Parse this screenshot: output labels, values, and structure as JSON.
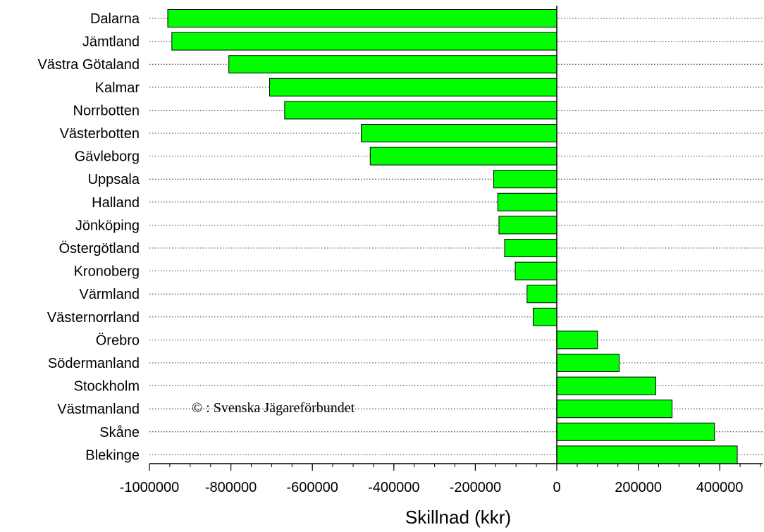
{
  "chart_data": {
    "type": "bar",
    "orientation": "horizontal",
    "categories": [
      "Dalarna",
      "Jämtland",
      "Västra Götaland",
      "Kalmar",
      "Norrbotten",
      "Västerbotten",
      "Gävleborg",
      "Uppsala",
      "Halland",
      "Jönköping",
      "Östergötland",
      "Kronoberg",
      "Värmland",
      "Västernorrland",
      "Örebro",
      "Södermanland",
      "Stockholm",
      "Västmanland",
      "Skåne",
      "Blekinge"
    ],
    "values": [
      -955000,
      -945000,
      -805000,
      -705000,
      -668000,
      -480000,
      -458000,
      -155000,
      -145000,
      -142000,
      -128000,
      -102000,
      -73000,
      -58000,
      100000,
      153000,
      243000,
      283000,
      387000,
      443000
    ],
    "xlabel": "Skillnad (kkr)",
    "xticks": [
      -1000000,
      -800000,
      -600000,
      -400000,
      -200000,
      0,
      200000,
      400000
    ],
    "xtick_labels": [
      "-1000000",
      "-800000",
      "-600000",
      "-400000",
      "-200000",
      "0",
      "200000",
      "400000"
    ],
    "xlim": [
      -1070000,
      545000
    ],
    "grid": "dotted horizontal lines per category",
    "bar_color": "#00ff00",
    "annotation": "© : Svenska Jägareförbundet"
  }
}
